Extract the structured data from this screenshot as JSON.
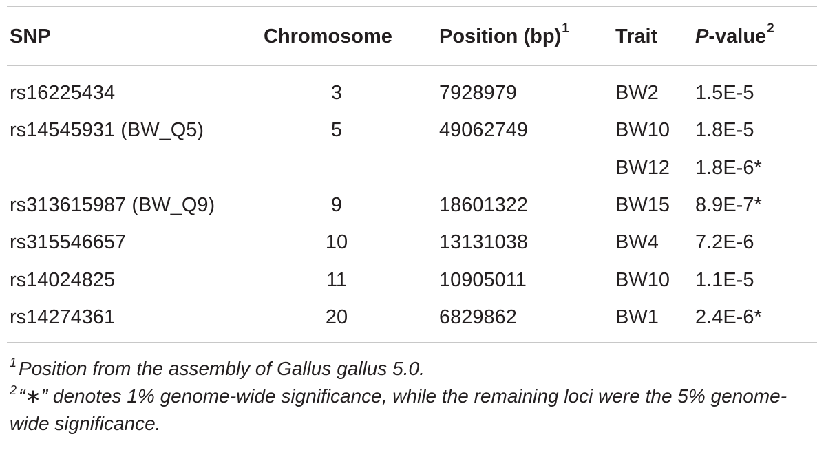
{
  "table": {
    "headers": {
      "snp": "SNP",
      "chromosome": "Chromosome",
      "position": "Position (bp)",
      "position_sup": "1",
      "trait": "Trait",
      "pvalue_italic": "P",
      "pvalue_rest": "-value",
      "pvalue_sup": "2"
    },
    "rows": [
      {
        "snp": "rs16225434",
        "chromosome": "3",
        "position": "7928979",
        "trait": "BW2",
        "pvalue": "1.5E-5"
      },
      {
        "snp": "rs14545931 (BW_Q5)",
        "chromosome": "5",
        "position": "49062749",
        "trait": "BW10",
        "pvalue": "1.8E-5"
      },
      {
        "snp": "",
        "chromosome": "",
        "position": "",
        "trait": "BW12",
        "pvalue": "1.8E-6*"
      },
      {
        "snp": "rs313615987 (BW_Q9)",
        "chromosome": "9",
        "position": "18601322",
        "trait": "BW15",
        "pvalue": "8.9E-7*"
      },
      {
        "snp": "rs315546657",
        "chromosome": "10",
        "position": "13131038",
        "trait": "BW4",
        "pvalue": "7.2E-6"
      },
      {
        "snp": "rs14024825",
        "chromosome": "11",
        "position": "10905011",
        "trait": "BW10",
        "pvalue": "1.1E-5"
      },
      {
        "snp": "rs14274361",
        "chromosome": "20",
        "position": "6829862",
        "trait": "BW1",
        "pvalue": "2.4E-6*"
      }
    ]
  },
  "footnotes": [
    {
      "mark": "1",
      "text": "Position from the assembly of Gallus gallus 5.0."
    },
    {
      "mark": "2",
      "text": "“∗” denotes 1% genome-wide significance, while the remaining loci were the 5% genome-wide significance."
    }
  ]
}
